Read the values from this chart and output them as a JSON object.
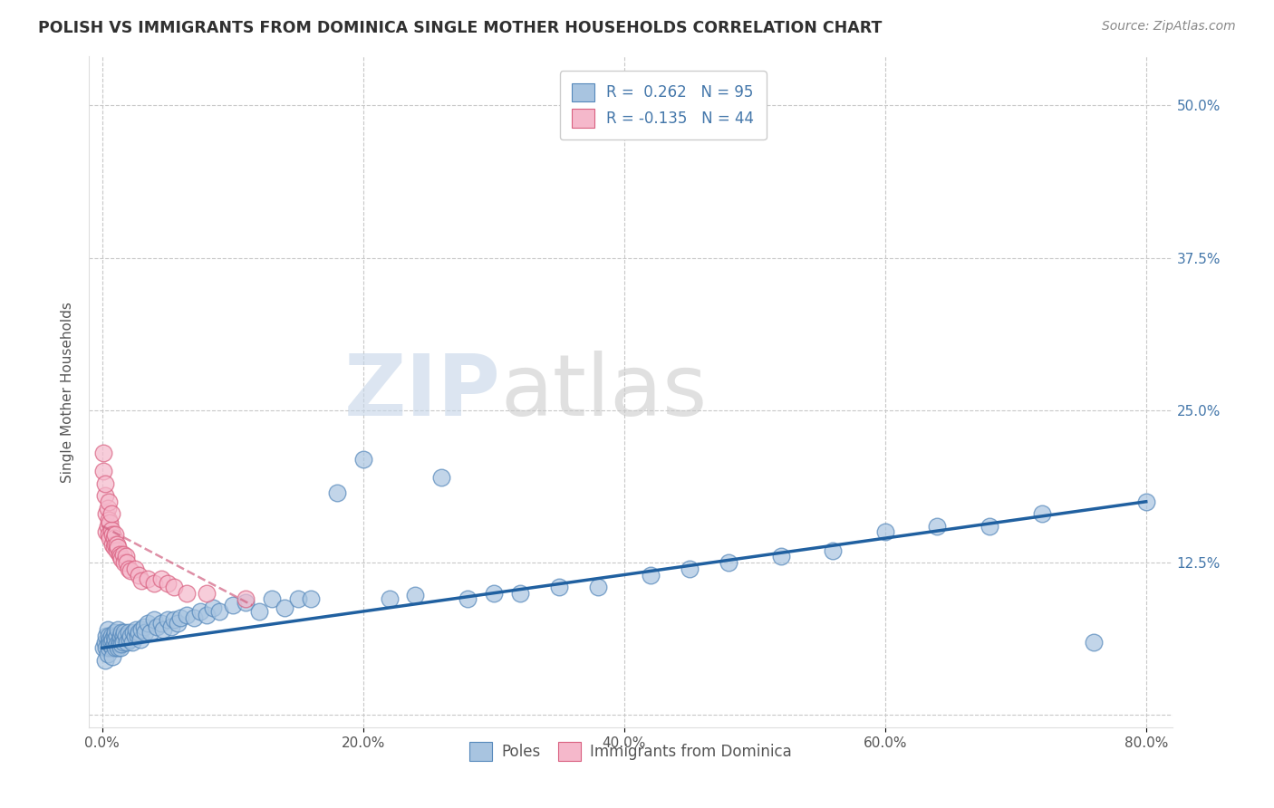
{
  "title": "POLISH VS IMMIGRANTS FROM DOMINICA SINGLE MOTHER HOUSEHOLDS CORRELATION CHART",
  "source": "Source: ZipAtlas.com",
  "ylabel": "Single Mother Households",
  "xlim": [
    -0.01,
    0.82
  ],
  "ylim": [
    -0.01,
    0.54
  ],
  "xticks": [
    0.0,
    0.2,
    0.4,
    0.6,
    0.8
  ],
  "xticklabels": [
    "0.0%",
    "20.0%",
    "40.0%",
    "60.0%",
    "80.0%"
  ],
  "yticks": [
    0.0,
    0.125,
    0.25,
    0.375,
    0.5
  ],
  "yticklabels": [
    "",
    "12.5%",
    "25.0%",
    "37.5%",
    "50.0%"
  ],
  "watermark": "ZIPatlas",
  "legend_r1_text": "R =  0.262   N = 95",
  "legend_r2_text": "R = -0.135   N = 44",
  "color_poles_fill": "#a8c4e0",
  "color_poles_edge": "#5588bb",
  "color_dominica_fill": "#f5b8cb",
  "color_dominica_edge": "#d96080",
  "color_poles_line": "#2060a0",
  "color_dominica_line": "#d06080",
  "grid_color": "#c8c8c8",
  "title_color": "#303030",
  "source_color": "#888888",
  "tick_color": "#4477aa",
  "background_color": "#ffffff",
  "poles_scatter_x": [
    0.001,
    0.002,
    0.002,
    0.003,
    0.003,
    0.004,
    0.004,
    0.005,
    0.005,
    0.005,
    0.006,
    0.006,
    0.007,
    0.007,
    0.008,
    0.008,
    0.008,
    0.009,
    0.009,
    0.01,
    0.01,
    0.01,
    0.011,
    0.011,
    0.012,
    0.012,
    0.013,
    0.013,
    0.014,
    0.014,
    0.015,
    0.015,
    0.016,
    0.016,
    0.017,
    0.018,
    0.019,
    0.02,
    0.021,
    0.022,
    0.023,
    0.024,
    0.025,
    0.026,
    0.027,
    0.028,
    0.029,
    0.03,
    0.032,
    0.033,
    0.035,
    0.037,
    0.04,
    0.042,
    0.045,
    0.047,
    0.05,
    0.053,
    0.055,
    0.058,
    0.06,
    0.065,
    0.07,
    0.075,
    0.08,
    0.085,
    0.09,
    0.1,
    0.11,
    0.12,
    0.13,
    0.14,
    0.15,
    0.16,
    0.18,
    0.2,
    0.22,
    0.24,
    0.26,
    0.28,
    0.3,
    0.32,
    0.35,
    0.38,
    0.42,
    0.45,
    0.48,
    0.52,
    0.56,
    0.6,
    0.64,
    0.68,
    0.72,
    0.76,
    0.8
  ],
  "poles_scatter_y": [
    0.055,
    0.06,
    0.045,
    0.065,
    0.055,
    0.07,
    0.05,
    0.06,
    0.065,
    0.055,
    0.062,
    0.058,
    0.065,
    0.06,
    0.055,
    0.062,
    0.048,
    0.065,
    0.058,
    0.068,
    0.062,
    0.055,
    0.065,
    0.058,
    0.07,
    0.055,
    0.062,
    0.058,
    0.065,
    0.055,
    0.068,
    0.058,
    0.065,
    0.06,
    0.068,
    0.065,
    0.06,
    0.068,
    0.062,
    0.065,
    0.06,
    0.068,
    0.065,
    0.07,
    0.065,
    0.068,
    0.062,
    0.07,
    0.072,
    0.068,
    0.075,
    0.068,
    0.078,
    0.072,
    0.075,
    0.07,
    0.078,
    0.072,
    0.078,
    0.075,
    0.08,
    0.082,
    0.08,
    0.085,
    0.082,
    0.088,
    0.085,
    0.09,
    0.092,
    0.085,
    0.095,
    0.088,
    0.095,
    0.095,
    0.182,
    0.21,
    0.095,
    0.098,
    0.195,
    0.095,
    0.1,
    0.1,
    0.105,
    0.105,
    0.115,
    0.12,
    0.125,
    0.13,
    0.135,
    0.15,
    0.155,
    0.155,
    0.165,
    0.06,
    0.175
  ],
  "dominica_scatter_x": [
    0.001,
    0.001,
    0.002,
    0.002,
    0.003,
    0.003,
    0.004,
    0.004,
    0.005,
    0.005,
    0.005,
    0.006,
    0.006,
    0.007,
    0.007,
    0.008,
    0.008,
    0.009,
    0.009,
    0.01,
    0.01,
    0.011,
    0.011,
    0.012,
    0.013,
    0.014,
    0.015,
    0.016,
    0.017,
    0.018,
    0.019,
    0.02,
    0.022,
    0.025,
    0.028,
    0.03,
    0.035,
    0.04,
    0.045,
    0.05,
    0.055,
    0.065,
    0.08,
    0.11
  ],
  "dominica_scatter_y": [
    0.215,
    0.2,
    0.18,
    0.19,
    0.165,
    0.15,
    0.155,
    0.17,
    0.16,
    0.148,
    0.175,
    0.145,
    0.158,
    0.152,
    0.165,
    0.14,
    0.148,
    0.138,
    0.145,
    0.14,
    0.148,
    0.135,
    0.14,
    0.138,
    0.132,
    0.13,
    0.128,
    0.132,
    0.125,
    0.13,
    0.125,
    0.12,
    0.118,
    0.12,
    0.115,
    0.11,
    0.112,
    0.108,
    0.112,
    0.108,
    0.105,
    0.1,
    0.1,
    0.095
  ],
  "poles_line_x": [
    0.0,
    0.8
  ],
  "poles_line_y": [
    0.055,
    0.175
  ],
  "dominica_line_x": [
    0.0,
    0.115
  ],
  "dominica_line_y": [
    0.155,
    0.09
  ]
}
